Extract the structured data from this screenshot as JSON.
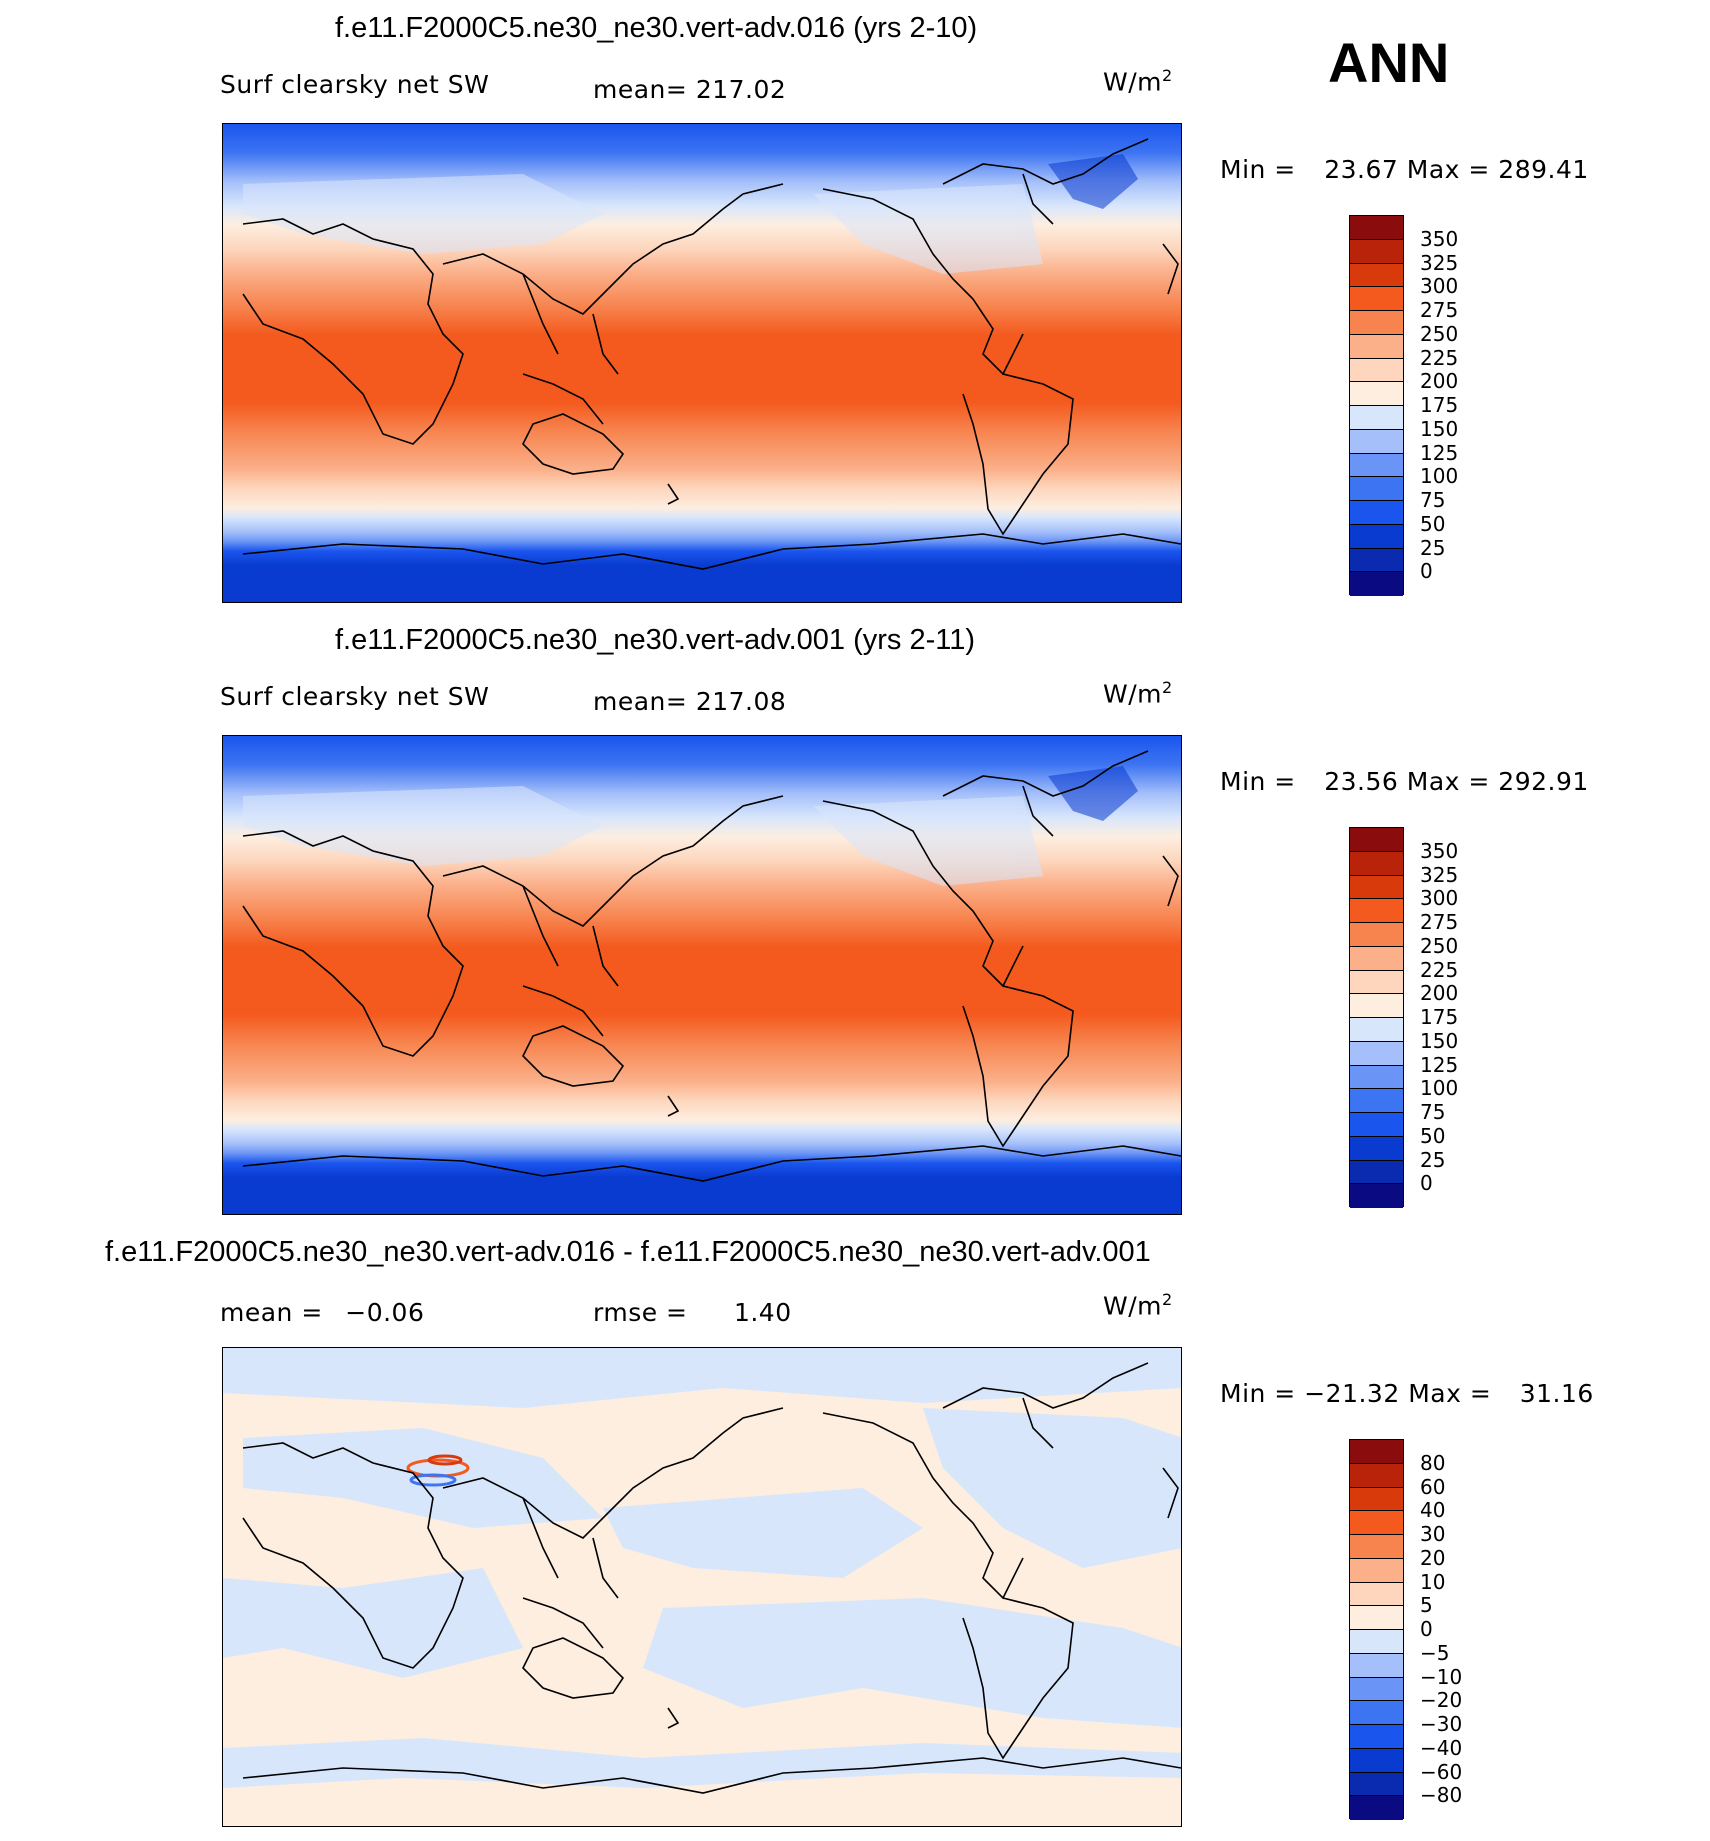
{
  "header": {
    "season": "ANN"
  },
  "colors": {
    "abs_scale": [
      "#0a0a82",
      "#0a2bb0",
      "#0a3bd0",
      "#1a55ee",
      "#3d74f2",
      "#6a94f5",
      "#a4bffa",
      "#d8e6fc",
      "#fdeee0",
      "#fdd6bd",
      "#fbb08a",
      "#f7844f",
      "#f45a1e",
      "#d93a0c",
      "#b8230a",
      "#8a0c0c"
    ],
    "diff_scale": [
      "#0a0a82",
      "#0a2bb0",
      "#0a3bd0",
      "#1a55ee",
      "#3d74f2",
      "#6a94f5",
      "#a4bffa",
      "#d8e6fc",
      "#fdeee0",
      "#fdd6bd",
      "#fbb08a",
      "#f7844f",
      "#f45a1e",
      "#d93a0c",
      "#b8230a",
      "#8a0c0c"
    ],
    "land_line": "#000000"
  },
  "panels": [
    {
      "title": "f.e11.F2000C5.ne30_ne30.vert-adv.016 (yrs 2-10)",
      "variable": "Surf clearsky net SW",
      "mean_label": "mean=",
      "mean_value": "217.02",
      "units": "W/m",
      "units_exp": "2",
      "min_label": "Min =",
      "min_value": "23.67",
      "max_label": "Max =",
      "max_value": "289.41",
      "colorbar_ticks": [
        "350",
        "325",
        "300",
        "275",
        "250",
        "225",
        "200",
        "175",
        "150",
        "125",
        "100",
        "75",
        "50",
        "25",
        "0"
      ]
    },
    {
      "title": "f.e11.F2000C5.ne30_ne30.vert-adv.001 (yrs 2-11)",
      "variable": "Surf clearsky net SW",
      "mean_label": "mean=",
      "mean_value": "217.08",
      "units": "W/m",
      "units_exp": "2",
      "min_label": "Min =",
      "min_value": "23.56",
      "max_label": "Max =",
      "max_value": "292.91",
      "colorbar_ticks": [
        "350",
        "325",
        "300",
        "275",
        "250",
        "225",
        "200",
        "175",
        "150",
        "125",
        "100",
        "75",
        "50",
        "25",
        "0"
      ]
    },
    {
      "title": "f.e11.F2000C5.ne30_ne30.vert-adv.016 - f.e11.F2000C5.ne30_ne30.vert-adv.001",
      "mean_label": "mean =",
      "mean_value": "−0.06",
      "rmse_label": "rmse =",
      "rmse_value": "1.40",
      "units": "W/m",
      "units_exp": "2",
      "min_label": "Min =",
      "min_value": "−21.32",
      "max_label": "Max =",
      "max_value": "31.16",
      "colorbar_ticks": [
        "80",
        "60",
        "40",
        "30",
        "20",
        "10",
        "5",
        "0",
        "−5",
        "−10",
        "−20",
        "−30",
        "−40",
        "−60",
        "−80"
      ]
    }
  ]
}
